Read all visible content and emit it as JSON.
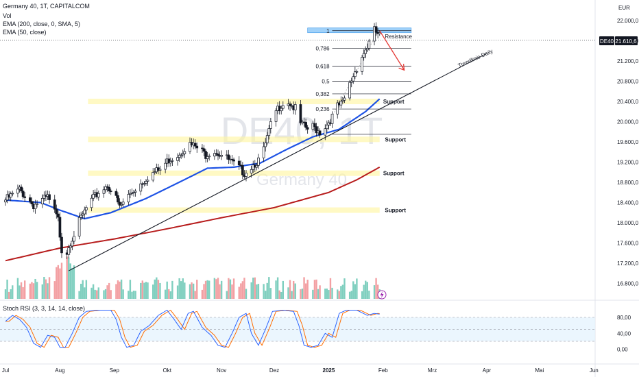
{
  "header": {
    "symbol": "Germany 40, 1T, CAPITALCOM",
    "vol": "Vol",
    "ema200": "EMA (200, close, 0, SMA, 5)",
    "ema50": "EMA (50, close)",
    "currency": "EUR"
  },
  "watermark": {
    "ticker": "DE40, 1T",
    "name": "Germany 40"
  },
  "price_tag": {
    "symbol": "DE40",
    "value": "21.610,6"
  },
  "rsi": {
    "title": "Stoch RSI (3, 3, 14, 14, close)",
    "ticks": [
      "80,00",
      "40,00",
      "0,00"
    ]
  },
  "chart_data": {
    "type": "candlestick",
    "y_ticks": [
      "22.000,0",
      "21.600,0",
      "21.200,0",
      "20.800,0",
      "20.400,0",
      "20.000,0",
      "19.600,0",
      "19.200,0",
      "18.800,0",
      "18.400,0",
      "18.000,0",
      "17.600,0",
      "17.200,0",
      "16.800,0"
    ],
    "y_tick_values": [
      22000,
      21600,
      21200,
      20800,
      20400,
      20000,
      19600,
      19200,
      18800,
      18400,
      18000,
      17600,
      17200,
      16800
    ],
    "ylim": [
      16650,
      22100
    ],
    "x_ticks": [
      "Jul",
      "Aug",
      "Sep",
      "Okt",
      "Nov",
      "Dez",
      "2025",
      "Feb",
      "Mrz",
      "Apr",
      "Mai",
      "Jun"
    ],
    "x_tick_days": [
      0,
      31,
      62,
      92,
      123,
      153,
      184,
      215,
      243,
      274,
      304,
      335
    ],
    "last_close": 21610.6,
    "key_points": [
      {
        "d": 0,
        "p": 18450
      },
      {
        "d": 8,
        "p": 18650
      },
      {
        "d": 16,
        "p": 18350
      },
      {
        "d": 24,
        "p": 18500
      },
      {
        "d": 30,
        "p": 18050
      },
      {
        "d": 33,
        "p": 17200
      },
      {
        "d": 36,
        "p": 17550
      },
      {
        "d": 41,
        "p": 17950
      },
      {
        "d": 47,
        "p": 18350
      },
      {
        "d": 53,
        "p": 18600
      },
      {
        "d": 58,
        "p": 18750
      },
      {
        "d": 62,
        "p": 18550
      },
      {
        "d": 65,
        "p": 18300
      },
      {
        "d": 69,
        "p": 18500
      },
      {
        "d": 76,
        "p": 18750
      },
      {
        "d": 82,
        "p": 18950
      },
      {
        "d": 88,
        "p": 19050
      },
      {
        "d": 93,
        "p": 19250
      },
      {
        "d": 98,
        "p": 19350
      },
      {
        "d": 104,
        "p": 19550
      },
      {
        "d": 108,
        "p": 19500
      },
      {
        "d": 114,
        "p": 19350
      },
      {
        "d": 118,
        "p": 19450
      },
      {
        "d": 125,
        "p": 19300
      },
      {
        "d": 130,
        "p": 19150
      },
      {
        "d": 136,
        "p": 19000
      },
      {
        "d": 141,
        "p": 19150
      },
      {
        "d": 146,
        "p": 19300
      },
      {
        "d": 150,
        "p": 19800
      },
      {
        "d": 153,
        "p": 20150
      },
      {
        "d": 157,
        "p": 20350
      },
      {
        "d": 161,
        "p": 20400
      },
      {
        "d": 165,
        "p": 20250
      },
      {
        "d": 168,
        "p": 19950
      },
      {
        "d": 172,
        "p": 19850
      },
      {
        "d": 175,
        "p": 19900
      },
      {
        "d": 179,
        "p": 19800
      },
      {
        "d": 183,
        "p": 19950
      },
      {
        "d": 186,
        "p": 20100
      },
      {
        "d": 189,
        "p": 20300
      },
      {
        "d": 192,
        "p": 20350
      },
      {
        "d": 195,
        "p": 20650
      },
      {
        "d": 199,
        "p": 21000
      },
      {
        "d": 203,
        "p": 21300
      },
      {
        "d": 207,
        "p": 21550
      },
      {
        "d": 210,
        "p": 21800
      },
      {
        "d": 213,
        "p": 21700
      }
    ],
    "ema50_points": [
      {
        "d": 0,
        "p": 18450
      },
      {
        "d": 20,
        "p": 18400
      },
      {
        "d": 31,
        "p": 18250
      },
      {
        "d": 45,
        "p": 18080
      },
      {
        "d": 60,
        "p": 18200
      },
      {
        "d": 80,
        "p": 18480
      },
      {
        "d": 100,
        "p": 18820
      },
      {
        "d": 115,
        "p": 19080
      },
      {
        "d": 130,
        "p": 19100
      },
      {
        "d": 145,
        "p": 19180
      },
      {
        "d": 160,
        "p": 19450
      },
      {
        "d": 175,
        "p": 19700
      },
      {
        "d": 190,
        "p": 19850
      },
      {
        "d": 205,
        "p": 20200
      },
      {
        "d": 213,
        "p": 20450
      }
    ],
    "ema200_points": [
      {
        "d": 0,
        "p": 17250
      },
      {
        "d": 31,
        "p": 17500
      },
      {
        "d": 62,
        "p": 17680
      },
      {
        "d": 92,
        "p": 17880
      },
      {
        "d": 123,
        "p": 18100
      },
      {
        "d": 153,
        "p": 18300
      },
      {
        "d": 184,
        "p": 18600
      },
      {
        "d": 200,
        "p": 18850
      },
      {
        "d": 213,
        "p": 19100
      }
    ],
    "trendline": {
      "from": {
        "d": 36,
        "p": 17050
      },
      "to": {
        "d": 274,
        "p": 21350
      },
      "label": "Trendlinie Daily"
    },
    "fib_levels": [
      {
        "label": "1",
        "p": 21800
      },
      {
        "label": "0,786",
        "p": 21450
      },
      {
        "label": "0,618",
        "p": 21100
      },
      {
        "label": "0,5",
        "p": 20800
      },
      {
        "label": "0,382",
        "p": 20550
      },
      {
        "label": "0,236",
        "p": 20250
      }
    ],
    "fib_base": 19750,
    "resistance": {
      "label": "Resistance",
      "p": 21800
    },
    "support_zones": [
      {
        "label": "Support",
        "p": 20400
      },
      {
        "label": "Support",
        "p": 19650
      },
      {
        "label": "Support",
        "p": 18980
      },
      {
        "label": "Support",
        "p": 18250
      }
    ],
    "projection_arrow": {
      "from": {
        "d": 213,
        "p": 21800
      },
      "to": {
        "d": 227,
        "p": 21020
      }
    },
    "stoch_rsi_points": [
      {
        "d": 0,
        "k": 70
      },
      {
        "d": 4,
        "k": 85
      },
      {
        "d": 8,
        "k": 75
      },
      {
        "d": 12,
        "k": 55
      },
      {
        "d": 16,
        "k": 15
      },
      {
        "d": 20,
        "k": 5
      },
      {
        "d": 24,
        "k": 35
      },
      {
        "d": 28,
        "k": 30
      },
      {
        "d": 31,
        "k": 5
      },
      {
        "d": 34,
        "k": 5
      },
      {
        "d": 38,
        "k": 40
      },
      {
        "d": 42,
        "k": 80
      },
      {
        "d": 46,
        "k": 95
      },
      {
        "d": 52,
        "k": 98
      },
      {
        "d": 60,
        "k": 98
      },
      {
        "d": 63,
        "k": 75
      },
      {
        "d": 66,
        "k": 30
      },
      {
        "d": 69,
        "k": 5
      },
      {
        "d": 73,
        "k": 10
      },
      {
        "d": 77,
        "k": 45
      },
      {
        "d": 82,
        "k": 60
      },
      {
        "d": 87,
        "k": 85
      },
      {
        "d": 92,
        "k": 98
      },
      {
        "d": 96,
        "k": 75
      },
      {
        "d": 100,
        "k": 50
      },
      {
        "d": 104,
        "k": 90
      },
      {
        "d": 107,
        "k": 95
      },
      {
        "d": 112,
        "k": 55
      },
      {
        "d": 117,
        "k": 35
      },
      {
        "d": 121,
        "k": 10
      },
      {
        "d": 125,
        "k": 5
      },
      {
        "d": 129,
        "k": 40
      },
      {
        "d": 133,
        "k": 80
      },
      {
        "d": 137,
        "k": 90
      },
      {
        "d": 140,
        "k": 40
      },
      {
        "d": 144,
        "k": 10
      },
      {
        "d": 148,
        "k": 50
      },
      {
        "d": 152,
        "k": 95
      },
      {
        "d": 158,
        "k": 98
      },
      {
        "d": 164,
        "k": 95
      },
      {
        "d": 167,
        "k": 60
      },
      {
        "d": 170,
        "k": 10
      },
      {
        "d": 174,
        "k": 5
      },
      {
        "d": 178,
        "k": 10
      },
      {
        "d": 182,
        "k": 40
      },
      {
        "d": 186,
        "k": 30
      },
      {
        "d": 190,
        "k": 90
      },
      {
        "d": 194,
        "k": 98
      },
      {
        "d": 200,
        "k": 98
      },
      {
        "d": 206,
        "k": 85
      },
      {
        "d": 210,
        "k": 90
      },
      {
        "d": 213,
        "k": 88
      }
    ],
    "stoch_rsi_levels": [
      80,
      50,
      20
    ]
  }
}
